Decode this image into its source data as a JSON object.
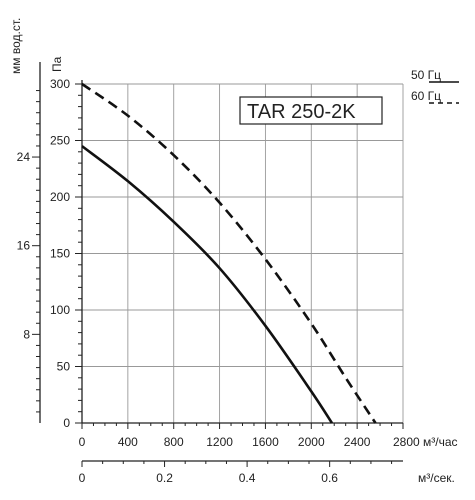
{
  "chart_data": {
    "type": "line",
    "title_box": "TAR 250-2K",
    "pa_axis": {
      "label": "Па",
      "range": [
        0,
        300
      ],
      "ticks": [
        "0",
        "50",
        "100",
        "150",
        "200",
        "250",
        "300"
      ]
    },
    "mm_axis": {
      "label": "мм вод.ст.",
      "ticks": [
        "8",
        "16",
        "24"
      ]
    },
    "flow_axis_m3h": {
      "range": [
        0,
        2800
      ],
      "ticks": [
        "0",
        "400",
        "800",
        "1200",
        "1600",
        "2000",
        "2400",
        "2800 м³/час"
      ]
    },
    "flow_axis_m3s": {
      "unit_label": "м³/сек.",
      "ticks": [
        "0",
        "0.2",
        "0.4",
        "0.6"
      ]
    },
    "legend": [
      "50 Гц",
      "60 Гц"
    ],
    "series": [
      {
        "name": "50 Гц",
        "style": "solid",
        "points": [
          [
            0,
            245
          ],
          [
            400,
            214
          ],
          [
            800,
            178
          ],
          [
            1200,
            137
          ],
          [
            1600,
            86
          ],
          [
            2000,
            28
          ],
          [
            2180,
            0
          ]
        ]
      },
      {
        "name": "60 Гц",
        "style": "dashed",
        "points": [
          [
            0,
            300
          ],
          [
            400,
            272
          ],
          [
            800,
            237
          ],
          [
            1200,
            195
          ],
          [
            1600,
            145
          ],
          [
            2000,
            88
          ],
          [
            2300,
            40
          ],
          [
            2560,
            0
          ]
        ]
      }
    ],
    "grid": true,
    "colors": {
      "line": "#111111",
      "grid": "#999999",
      "axis": "#222222"
    }
  }
}
